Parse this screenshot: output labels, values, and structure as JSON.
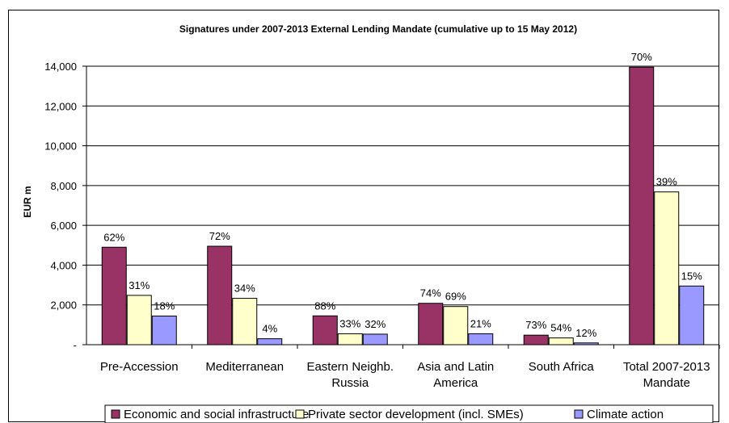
{
  "chart_data": {
    "type": "bar",
    "title": "Signatures under 2007-2013 External Lending Mandate (cumulative up to 15 May 2012)",
    "ylabel": "EUR m",
    "xlabel": "",
    "ylim": [
      0,
      14000
    ],
    "yticks": [
      0,
      2000,
      4000,
      6000,
      8000,
      10000,
      12000,
      14000
    ],
    "ytick_labels": [
      "-",
      "2,000",
      "4,000",
      "6,000",
      "8,000",
      "10,000",
      "12,000",
      "14,000"
    ],
    "grid": true,
    "legend_position": "bottom",
    "categories": [
      [
        "Pre-Accession"
      ],
      [
        "Mediterranean"
      ],
      [
        "Eastern Neighb.",
        "Russia"
      ],
      [
        "Asia and Latin",
        "America"
      ],
      [
        "South Africa"
      ],
      [
        "Total 2007-2013",
        "Mandate"
      ]
    ],
    "series": [
      {
        "name": "Economic and social infrastructure",
        "color": "#993366",
        "values": [
          4900,
          4950,
          1450,
          2080,
          480,
          13950
        ],
        "labels": [
          "62%",
          "72%",
          "88%",
          "74%",
          "73%",
          "70%"
        ]
      },
      {
        "name": "Private sector development (incl. SMEs)",
        "color": "#ffffcc",
        "values": [
          2480,
          2330,
          550,
          1920,
          340,
          7680
        ],
        "labels": [
          "31%",
          "34%",
          "33%",
          "69%",
          "54%",
          "39%"
        ]
      },
      {
        "name": "Climate action",
        "color": "#9999ff",
        "values": [
          1440,
          300,
          530,
          550,
          90,
          2950
        ],
        "labels": [
          "18%",
          "4%",
          "32%",
          "21%",
          "12%",
          "15%"
        ]
      }
    ]
  }
}
